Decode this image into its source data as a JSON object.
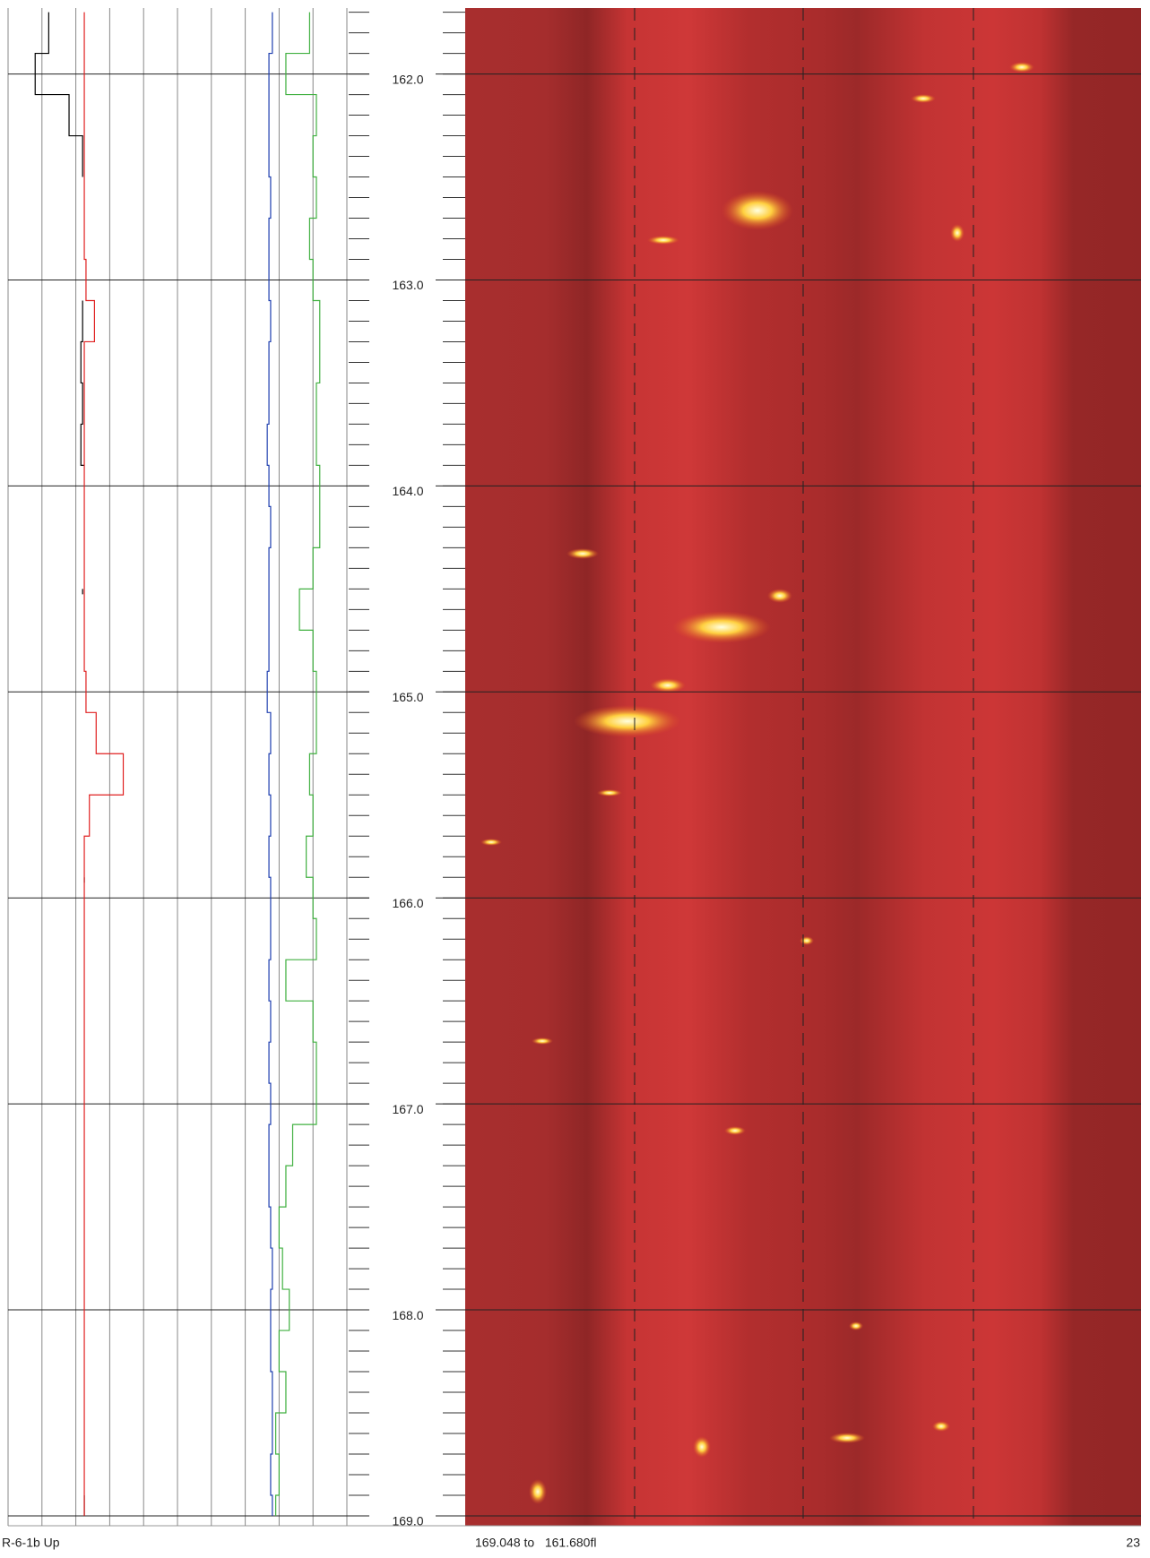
{
  "chart_data": {
    "type": "well-log",
    "x": [
      161.7,
      161.9,
      162.1,
      162.3,
      162.5,
      162.7,
      162.9,
      163.1,
      163.3,
      163.5,
      163.7,
      163.9,
      164.1,
      164.3,
      164.5,
      164.7,
      164.9,
      165.1,
      165.3,
      165.5,
      165.7,
      165.9,
      166.1,
      166.3,
      166.5,
      166.7,
      166.9,
      167.1,
      167.3,
      167.5,
      167.7,
      167.9,
      168.1,
      168.3,
      168.5,
      168.7,
      168.9,
      169.0
    ],
    "xlim": [
      161.68,
      169.048
    ],
    "xticks": [
      {
        "value": 162,
        "label": "162.0"
      },
      {
        "value": 163,
        "label": "163.0"
      },
      {
        "value": 164,
        "label": "164.0"
      },
      {
        "value": 165,
        "label": "165.0"
      },
      {
        "value": 166,
        "label": "166.0"
      },
      {
        "value": 167,
        "label": "167.0"
      },
      {
        "value": 168,
        "label": "168.0"
      },
      {
        "value": 169,
        "label": "169.0"
      }
    ],
    "ylim": [
      0,
      10
    ],
    "series": [
      {
        "color": "#000000",
        "values": [
          1.2,
          0.8,
          1.8,
          2.2,
          2.2,
          null,
          null,
          2.2,
          2.15,
          2.2,
          2.15,
          2.25,
          null,
          null,
          2.2,
          null,
          null,
          null,
          null,
          null,
          null,
          2.25,
          null,
          null,
          null,
          null,
          null,
          null,
          null,
          null,
          null,
          null,
          null,
          null,
          null,
          null,
          2.25,
          2.25
        ]
      },
      {
        "color": "#e02020",
        "values": [
          2.25,
          2.25,
          2.25,
          2.25,
          2.25,
          2.25,
          2.3,
          2.55,
          2.25,
          2.25,
          2.25,
          2.25,
          2.25,
          2.25,
          2.25,
          2.25,
          2.3,
          2.6,
          3.4,
          2.4,
          2.25,
          2.25,
          2.25,
          2.25,
          2.25,
          2.25,
          2.25,
          2.25,
          2.25,
          2.25,
          2.25,
          2.25,
          2.25,
          2.25,
          2.25,
          2.25,
          2.25,
          2.25
        ]
      },
      {
        "color": "#2040b0",
        "values": [
          7.8,
          7.7,
          7.7,
          7.7,
          7.75,
          7.7,
          7.7,
          7.75,
          7.7,
          7.7,
          7.65,
          7.7,
          7.75,
          7.7,
          7.7,
          7.7,
          7.65,
          7.75,
          7.7,
          7.75,
          7.7,
          7.75,
          7.75,
          7.7,
          7.75,
          7.7,
          7.75,
          7.7,
          7.7,
          7.75,
          7.8,
          7.75,
          7.75,
          7.8,
          7.8,
          7.75,
          7.8,
          7.8
        ]
      },
      {
        "color": "#40b040",
        "values": [
          8.9,
          8.2,
          9.1,
          9.0,
          9.1,
          8.9,
          9.0,
          9.2,
          9.2,
          9.1,
          9.1,
          9.2,
          9.2,
          9.0,
          8.6,
          9.0,
          9.1,
          9.1,
          8.9,
          9.0,
          8.8,
          9.0,
          9.1,
          8.2,
          9.0,
          9.1,
          9.1,
          8.4,
          8.2,
          8.0,
          8.1,
          8.3,
          8.0,
          8.2,
          7.9,
          8.0,
          7.9,
          7.9
        ]
      }
    ]
  },
  "footer": {
    "left": "R-6-1b Up",
    "center": "169.048 to   161.680fl",
    "right": "23"
  }
}
